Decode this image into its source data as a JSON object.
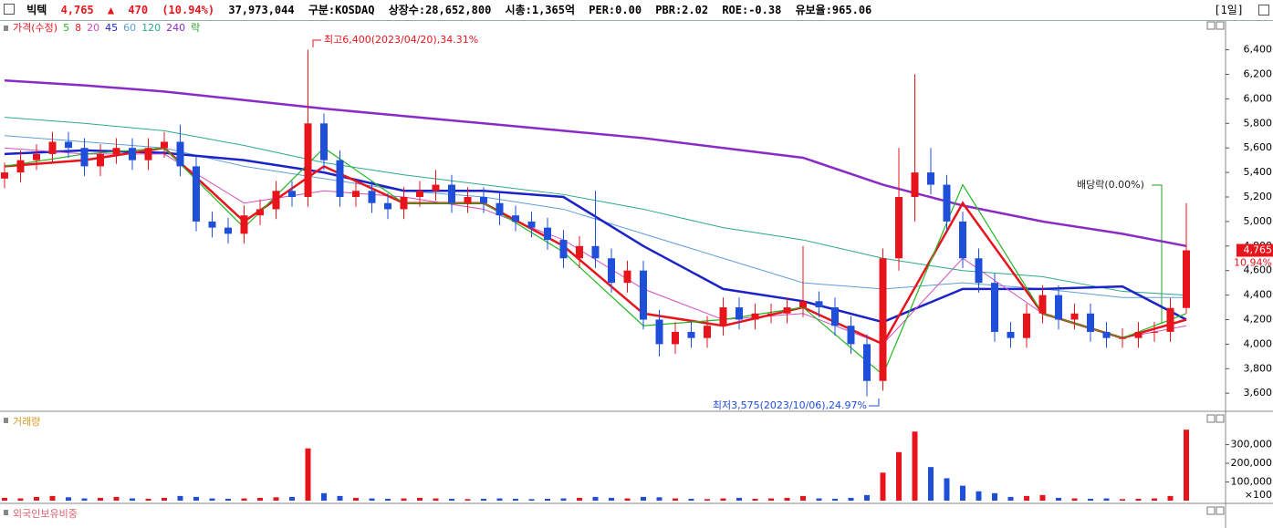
{
  "header": {
    "name": "빅텍",
    "price": "4,765",
    "arrow": "▲",
    "change": "470",
    "change_pct": "(10.94%)",
    "volume": "37,973,044",
    "market": "구분:KOSDAQ",
    "listed": "상장수:28,652,800",
    "cap": "시총:1,365억",
    "per": "PER:0.00",
    "pbr": "PBR:2.02",
    "roe": "ROE:-0.38",
    "reserve": "유보율:965.06",
    "period": "[1일]"
  },
  "chart_data": [
    {
      "type": "candlestick",
      "legend_label": "가격(수정)",
      "up_color": "#e8141b",
      "down_color": "#1f4fd8",
      "legend_extra": "락",
      "open": [
        5350,
        5400,
        5500,
        5550,
        5650,
        5600,
        5450,
        5550,
        5600,
        5500,
        5600,
        5650,
        5450,
        5000,
        4950,
        4900,
        5050,
        5100,
        5250,
        5200,
        5800,
        5500,
        5200,
        5250,
        5150,
        5100,
        5200,
        5250,
        5300,
        5150,
        5200,
        5150,
        5050,
        5000,
        4950,
        4850,
        4700,
        4800,
        4700,
        4500,
        4600,
        4200,
        4000,
        4100,
        4050,
        4150,
        4300,
        4200,
        4250,
        4250,
        4300,
        4350,
        4300,
        4150,
        4000,
        3700,
        4700,
        5200,
        5400,
        5300,
        5000,
        4700,
        4500,
        4100,
        4050,
        4250,
        4400,
        4200,
        4250,
        4100,
        4050,
        4050,
        4100,
        4100,
        4295
      ],
      "high": [
        5480,
        5580,
        5630,
        5730,
        5730,
        5680,
        5630,
        5680,
        5680,
        5680,
        5730,
        5790,
        5530,
        5080,
        5030,
        5130,
        5180,
        5330,
        5330,
        6400,
        5880,
        5580,
        5330,
        5330,
        5230,
        5280,
        5330,
        5420,
        5380,
        5280,
        5280,
        5230,
        5130,
        5080,
        5030,
        4930,
        4880,
        5250,
        4780,
        4680,
        4680,
        4280,
        4180,
        4180,
        4230,
        4380,
        4380,
        4330,
        4330,
        4380,
        4800,
        4430,
        4380,
        4230,
        4080,
        4780,
        5600,
        6200,
        5600,
        5380,
        5080,
        4780,
        4580,
        4180,
        4330,
        4480,
        4480,
        4330,
        4330,
        4180,
        4130,
        4180,
        4180,
        4375,
        5150
      ],
      "low": [
        5270,
        5320,
        5420,
        5470,
        5520,
        5370,
        5370,
        5470,
        5420,
        5420,
        5520,
        5370,
        4920,
        4870,
        4820,
        4820,
        4970,
        5020,
        5120,
        5120,
        5420,
        5120,
        5120,
        5070,
        5020,
        5020,
        5120,
        5170,
        5070,
        5070,
        5070,
        4970,
        4920,
        4870,
        4770,
        4620,
        4620,
        4620,
        4420,
        4420,
        4120,
        3900,
        3920,
        3970,
        3970,
        4070,
        4120,
        4120,
        4170,
        4170,
        4220,
        4220,
        4070,
        3920,
        3575,
        3620,
        4600,
        5000,
        5220,
        4920,
        4620,
        4420,
        4020,
        3970,
        3970,
        4170,
        4120,
        4120,
        4020,
        3970,
        3970,
        3970,
        4020,
        4020,
        4250
      ],
      "close": [
        5400,
        5500,
        5550,
        5650,
        5600,
        5450,
        5550,
        5600,
        5500,
        5600,
        5650,
        5450,
        5000,
        4950,
        4900,
        5050,
        5100,
        5250,
        5200,
        5800,
        5500,
        5200,
        5250,
        5150,
        5100,
        5200,
        5250,
        5300,
        5150,
        5200,
        5150,
        5050,
        5000,
        4950,
        4850,
        4700,
        4800,
        4700,
        4500,
        4600,
        4200,
        4000,
        4100,
        4050,
        4150,
        4300,
        4200,
        4250,
        4250,
        4300,
        4350,
        4300,
        4150,
        4000,
        3700,
        4700,
        5200,
        5400,
        5300,
        5000,
        4700,
        4500,
        4100,
        4050,
        4250,
        4400,
        4200,
        4250,
        4100,
        4050,
        4050,
        4100,
        4100,
        4295,
        4765
      ],
      "series": [
        {
          "name": "5",
          "color": "#22b822",
          "width": 1.2,
          "x": [
            0,
            5,
            10,
            15,
            20,
            25,
            30,
            35,
            40,
            45,
            50,
            55,
            60,
            65,
            70,
            74
          ],
          "values": [
            5450,
            5550,
            5600,
            4950,
            5600,
            5150,
            5150,
            4750,
            4150,
            4200,
            4300,
            3750,
            5300,
            4250,
            4050,
            4250
          ]
        },
        {
          "name": "8",
          "color": "#e8141b",
          "width": 2.5,
          "x": [
            0,
            5,
            10,
            15,
            20,
            25,
            30,
            35,
            40,
            45,
            50,
            55,
            60,
            65,
            70,
            74
          ],
          "values": [
            5450,
            5500,
            5600,
            5000,
            5450,
            5150,
            5150,
            4800,
            4250,
            4150,
            4300,
            4000,
            5150,
            4250,
            4050,
            4200
          ]
        },
        {
          "name": "20",
          "color": "#d24fc0",
          "width": 1,
          "x": [
            0,
            5,
            10,
            15,
            20,
            25,
            30,
            35,
            40,
            45,
            50,
            55,
            60,
            65,
            70,
            74
          ],
          "values": [
            5600,
            5550,
            5550,
            5150,
            5250,
            5200,
            5100,
            4850,
            4450,
            4200,
            4250,
            4000,
            4700,
            4250,
            4050,
            4150
          ]
        },
        {
          "name": "45",
          "color": "#1a22c8",
          "width": 2.5,
          "x": [
            0,
            5,
            10,
            15,
            20,
            25,
            30,
            35,
            40,
            45,
            50,
            55,
            60,
            65,
            70,
            74
          ],
          "values": [
            5550,
            5580,
            5560,
            5500,
            5400,
            5250,
            5250,
            5200,
            4800,
            4450,
            4350,
            4180,
            4450,
            4450,
            4470,
            4200
          ]
        },
        {
          "name": "60",
          "color": "#5f9fd8",
          "width": 1,
          "x": [
            0,
            5,
            10,
            15,
            20,
            25,
            30,
            35,
            40,
            45,
            50,
            55,
            60,
            65,
            70,
            74
          ],
          "values": [
            5700,
            5650,
            5600,
            5450,
            5350,
            5250,
            5200,
            5100,
            4900,
            4700,
            4500,
            4450,
            4500,
            4450,
            4380,
            4380
          ]
        },
        {
          "name": "120",
          "color": "#2aa88a",
          "width": 1,
          "x": [
            0,
            5,
            10,
            15,
            20,
            25,
            30,
            35,
            40,
            45,
            50,
            55,
            60,
            65,
            70,
            74
          ],
          "values": [
            5850,
            5800,
            5740,
            5620,
            5480,
            5380,
            5300,
            5220,
            5100,
            4950,
            4850,
            4700,
            4600,
            4550,
            4430,
            4400
          ]
        },
        {
          "name": "240",
          "color": "#8a2bc8",
          "width": 2.5,
          "x": [
            0,
            5,
            10,
            15,
            20,
            25,
            30,
            35,
            40,
            45,
            50,
            55,
            60,
            65,
            70,
            74
          ],
          "values": [
            6150,
            6110,
            6060,
            5990,
            5920,
            5860,
            5800,
            5740,
            5680,
            5600,
            5520,
            5300,
            5130,
            5000,
            4900,
            4800
          ]
        }
      ],
      "ylim": [
        3475,
        6635
      ],
      "yticks": [
        {
          "value": 3600,
          "label": "3,600"
        },
        {
          "value": 3800,
          "label": "3,800"
        },
        {
          "value": 4000,
          "label": "4,000"
        },
        {
          "value": 4200,
          "label": "4,200"
        },
        {
          "value": 4400,
          "label": "4,400"
        },
        {
          "value": 4600,
          "label": "4,600"
        },
        {
          "value": 4800,
          "label": "4,800"
        },
        {
          "value": 5000,
          "label": "5,000"
        },
        {
          "value": 5200,
          "label": "5,200"
        },
        {
          "value": 5400,
          "label": "5,400"
        },
        {
          "value": 5600,
          "label": "5,600"
        },
        {
          "value": 5800,
          "label": "5,800"
        },
        {
          "value": 6000,
          "label": "6,000"
        },
        {
          "value": 6200,
          "label": "6,200"
        },
        {
          "value": 6400,
          "label": "6,400"
        }
      ],
      "current": {
        "value": 4765,
        "value_label": "4,765",
        "change": 10.94,
        "change_label": "10.94%"
      },
      "annotations": [
        "최고6,400(2023/04/20),34.31%",
        "최저3,575(2023/10/06),24.97%",
        "배당락(0.00%)"
      ]
    },
    {
      "type": "bar",
      "title": "거래량",
      "values": [
        15000,
        12000,
        20000,
        25000,
        18000,
        12000,
        15000,
        20000,
        12000,
        10000,
        15000,
        25000,
        20000,
        12000,
        10000,
        12000,
        15000,
        18000,
        20000,
        280000,
        40000,
        25000,
        15000,
        12000,
        10000,
        12000,
        15000,
        12000,
        10000,
        8000,
        10000,
        12000,
        10000,
        8000,
        10000,
        12000,
        15000,
        20000,
        15000,
        12000,
        20000,
        18000,
        12000,
        10000,
        8000,
        12000,
        15000,
        10000,
        12000,
        15000,
        25000,
        12000,
        10000,
        15000,
        30000,
        150000,
        260000,
        370000,
        180000,
        120000,
        80000,
        50000,
        40000,
        20000,
        25000,
        30000,
        15000,
        12000,
        10000,
        12000,
        8000,
        10000,
        12000,
        25000,
        380000
      ],
      "ylim": [
        0,
        425000
      ],
      "yticks": [
        {
          "value": 100000,
          "label": "100,000"
        },
        {
          "value": 200000,
          "label": "200,000"
        },
        {
          "value": 300000,
          "label": "300,000"
        }
      ],
      "unit_label": "×100"
    }
  ],
  "foreign_panel": {
    "title": "외국인보유비중"
  }
}
